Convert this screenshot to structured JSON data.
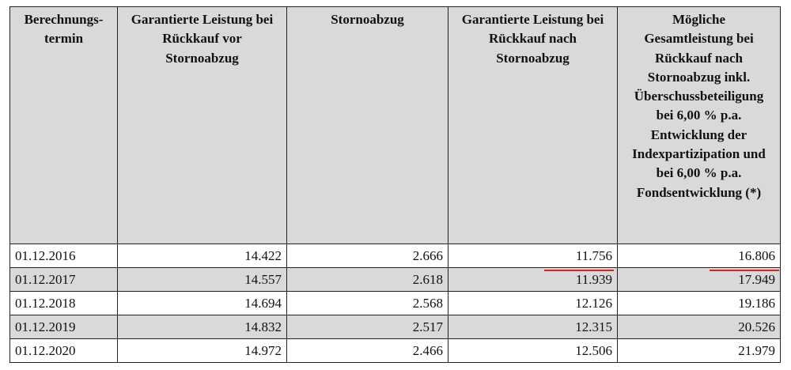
{
  "table": {
    "header": [
      [
        "Berechnungs-",
        "termin"
      ],
      [
        "Garantierte Leistung bei",
        "Rückkauf vor",
        "Stornoabzug"
      ],
      [
        "Stornoabzug"
      ],
      [
        "Garantierte Leistung bei",
        "Rückkauf nach",
        "Stornoabzug"
      ],
      [
        "Mögliche",
        "Gesamtleistung bei",
        "Rückkauf nach",
        "Stornoabzug inkl.",
        "Überschussbeteiligung",
        "bei 6,00 % p.a.",
        "Entwicklung der",
        "Indexpartizipation und",
        "bei 6,00 % p.a.",
        "Fondsentwicklung (*)"
      ]
    ],
    "rows": [
      [
        "01.12.2016",
        "14.422",
        "2.666",
        "11.756",
        "16.806"
      ],
      [
        "01.12.2017",
        "14.557",
        "2.618",
        "11.939",
        "17.949"
      ],
      [
        "01.12.2018",
        "14.694",
        "2.568",
        "12.126",
        "19.186"
      ],
      [
        "01.12.2019",
        "14.832",
        "2.517",
        "12.315",
        "20.526"
      ],
      [
        "01.12.2020",
        "14.972",
        "2.466",
        "12.506",
        "21.979"
      ]
    ]
  }
}
